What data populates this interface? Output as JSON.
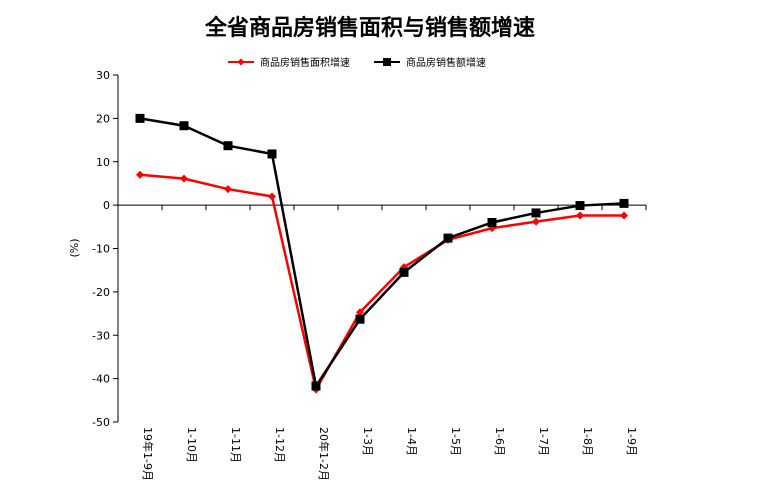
{
  "chart_data": {
    "type": "line",
    "title": "全省商品房销售面积与销售额增速",
    "ylabel": "(%)",
    "xlabel": "",
    "categories": [
      "19年1-9月",
      "1-10月",
      "1-11月",
      "1-12月",
      "20年1-2月",
      "1-3月",
      "1-4月",
      "1-5月",
      "1-6月",
      "1-7月",
      "1-8月",
      "1-9月"
    ],
    "ylim": [
      -50,
      30
    ],
    "yticks": [
      30,
      20,
      10,
      0,
      -10,
      -20,
      -30,
      -40,
      -50
    ],
    "grid": false,
    "legend_position": "top",
    "series": [
      {
        "name": "商品房销售面积增速",
        "color": "#ff0000",
        "marker": "diamond",
        "values": [
          7.0,
          6.1,
          3.7,
          2.0,
          -42.5,
          -24.7,
          -14.3,
          -8.0,
          -5.3,
          -3.8,
          -2.4,
          -2.4
        ]
      },
      {
        "name": "商品房销售额增速",
        "color": "#000000",
        "marker": "square",
        "values": [
          20.0,
          18.3,
          13.7,
          11.8,
          -41.7,
          -26.3,
          -15.5,
          -7.6,
          -4.0,
          -1.8,
          -0.1,
          0.4
        ]
      }
    ]
  }
}
